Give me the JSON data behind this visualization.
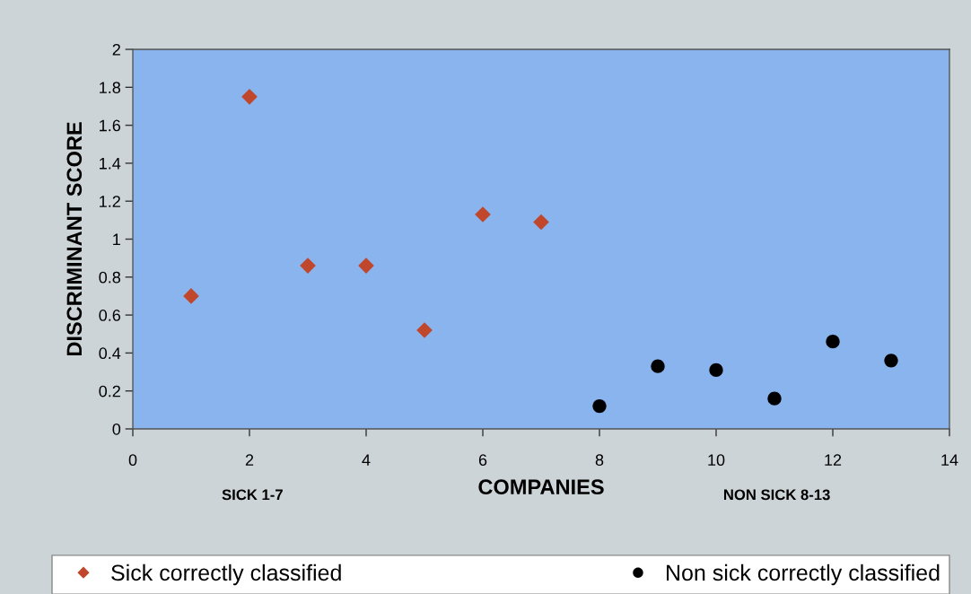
{
  "chart_data": {
    "type": "scatter",
    "ylabel": "DISCRIMINANT SCORE",
    "xlabel": "COMPANIES",
    "annotations": [
      "SICK 1-7",
      "NON SICK 8-13"
    ],
    "series": [
      {
        "name": "Sick correctly classified",
        "color": "#c0462c",
        "marker": "diamond",
        "x": [
          1,
          2,
          3,
          4,
          5,
          6,
          7
        ],
        "values": [
          0.7,
          1.75,
          0.86,
          0.86,
          0.52,
          1.13,
          1.09
        ]
      },
      {
        "name": "Non sick correctly classified",
        "color": "#000000",
        "marker": "circle",
        "x": [
          8,
          9,
          10,
          11,
          12,
          13
        ],
        "values": [
          0.12,
          0.33,
          0.31,
          0.16,
          0.46,
          0.36
        ]
      }
    ],
    "xlim": [
      0,
      14
    ],
    "xticks": [
      0,
      2,
      4,
      6,
      8,
      10,
      12,
      14
    ],
    "ylim": [
      0,
      2
    ],
    "yticks": [
      0,
      0.2,
      0.4,
      0.6,
      0.8,
      1,
      1.2,
      1.4,
      1.6,
      1.8,
      2
    ],
    "grid": false,
    "legend": "bottom"
  }
}
